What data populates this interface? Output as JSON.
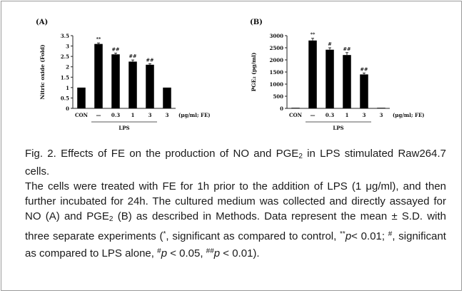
{
  "chart_data": [
    {
      "type": "bar",
      "panel_label": "(A)",
      "categories": [
        "CON",
        "—",
        "0.3",
        "1",
        "3",
        "3"
      ],
      "values": [
        1.0,
        3.1,
        2.6,
        2.25,
        2.1,
        1.0
      ],
      "errors": [
        0,
        0.05,
        0.06,
        0.08,
        0.05,
        0
      ],
      "annotations": [
        "",
        "**",
        "##",
        "##",
        "##",
        ""
      ],
      "ylabel": "Nitric oxide (Fold)",
      "unit_label": "(μg/ml; FE)",
      "group_label": "LPS",
      "ylim": [
        0,
        3.5
      ],
      "yticks": [
        "0",
        "0.5",
        "1",
        "1.5",
        "2",
        "2.5",
        "3",
        "3.5"
      ],
      "ytick_values": [
        0,
        0.5,
        1,
        1.5,
        2,
        2.5,
        3,
        3.5
      ],
      "grid": false
    },
    {
      "type": "bar",
      "panel_label": "(B)",
      "categories": [
        "CON",
        "—",
        "0.3",
        "1",
        "3",
        "3"
      ],
      "values": [
        10,
        2800,
        2420,
        2200,
        1400,
        10
      ],
      "errors": [
        0,
        90,
        80,
        100,
        60,
        0
      ],
      "annotations": [
        "",
        "**",
        "#",
        "##",
        "##",
        ""
      ],
      "ylabel": "PGE₂ (pg/ml)",
      "unit_label": "(μg/ml; FE)",
      "group_label": "LPS",
      "ylim": [
        0,
        3000
      ],
      "yticks": [
        "0",
        "500",
        "1000",
        "1500",
        "2000",
        "2500",
        "3000"
      ],
      "ytick_values": [
        0,
        500,
        1000,
        1500,
        2000,
        2500,
        3000
      ],
      "grid": false
    }
  ],
  "caption": {
    "title_a": "Fig. 2. Effects of FE on the production of NO and PGE",
    "title_sub": "2",
    "title_b": " in LPS stimulated Raw264.7 cells.",
    "body_1": "The cells were treated with FE for 1h prior to the addition of LPS (1 μg/ml), and then further incubated for 24h. The cultured medium was collected and directly assayed for NO (A) and PGE",
    "body_sub": "2",
    "body_2": " (B) as described in Methods. Data represent the mean ± S.D. with three separate experiments (",
    "star": "*",
    "body_3": ", significant as compared to control, ",
    "double_star": "**",
    "p_sym": "p",
    "body_4": "< 0.01; ",
    "hash": "#",
    "body_5": ", significant as compared to LPS alone, ",
    "hash_2": "#",
    "p_sym_2": "p",
    "body_6": " < 0.05, ",
    "double_hash": "##",
    "p_sym_3": "p",
    "body_7": " < 0.01)."
  }
}
